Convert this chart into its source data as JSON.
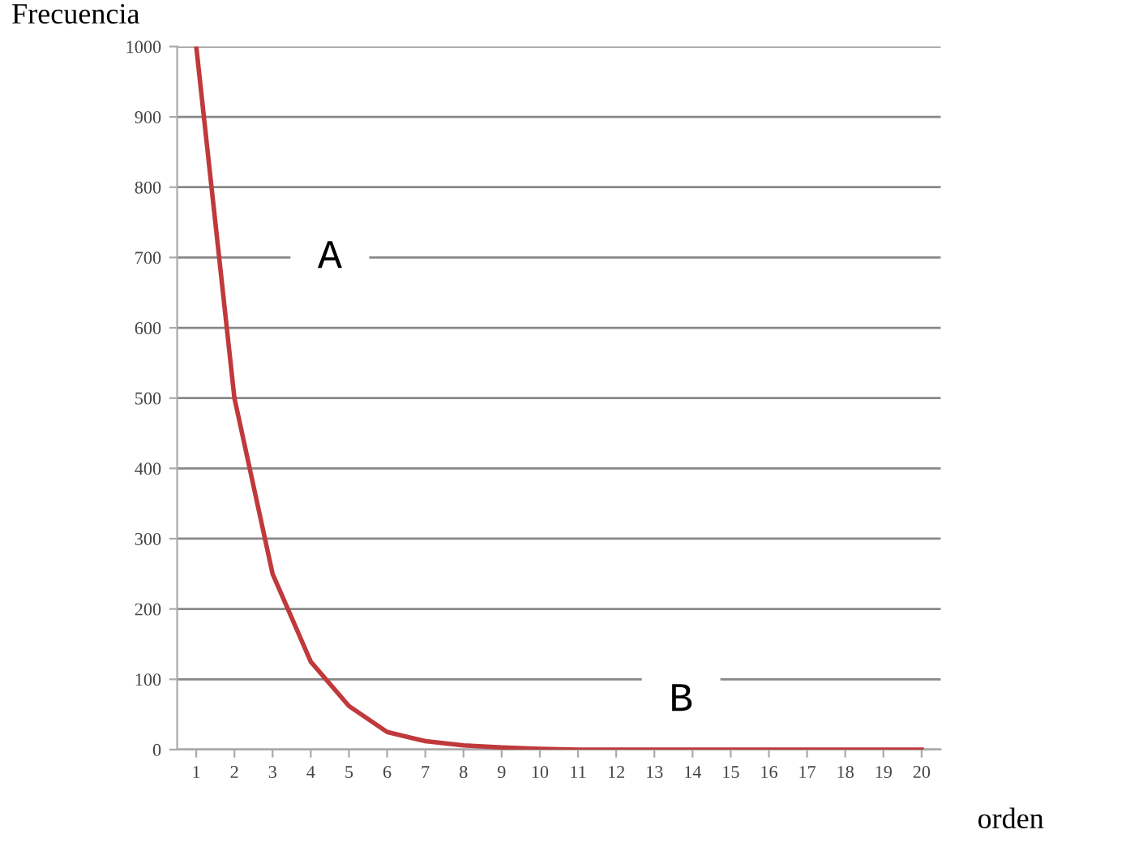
{
  "chart_data": {
    "type": "line",
    "ylabel": "Frecuencia",
    "xlabel": "orden",
    "categories": [
      "1",
      "2",
      "3",
      "4",
      "5",
      "6",
      "7",
      "8",
      "9",
      "10",
      "11",
      "12",
      "13",
      "14",
      "15",
      "16",
      "17",
      "18",
      "19",
      "20"
    ],
    "series": [
      {
        "color": "#c0393b",
        "values": [
          1000,
          500,
          250,
          125,
          62,
          25,
          12,
          6,
          3,
          1,
          0,
          0,
          0,
          0,
          0,
          0,
          0,
          0,
          0,
          0
        ]
      }
    ],
    "ylim": [
      0,
      1000
    ],
    "yticks": [
      0,
      100,
      200,
      300,
      400,
      500,
      600,
      700,
      800,
      900,
      1000
    ],
    "grid": "y",
    "marker": "none",
    "line_style": "solid",
    "annotations": [
      "A",
      "B"
    ]
  }
}
